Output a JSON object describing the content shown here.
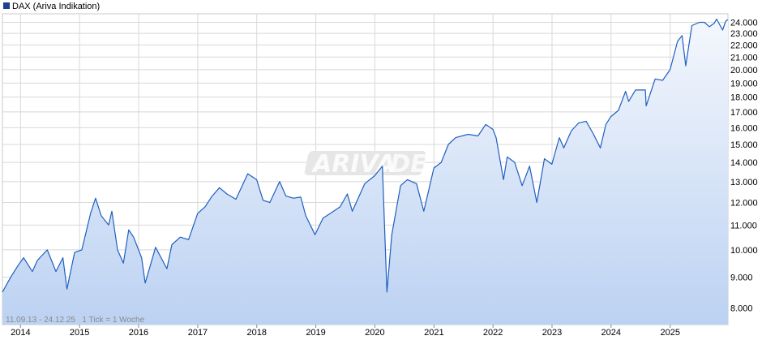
{
  "legend": {
    "label": "DAX (Ariva Indikation)",
    "swatch_color": "#1f3f8f"
  },
  "watermark": {
    "part1": "ARIVA",
    "part2": ".DE"
  },
  "info_text": "11.09.13 - 24.12.25   1 Tick = 1 Woche",
  "colors": {
    "line": "#1f5fbf",
    "fill_top": "#f4f7fd",
    "fill_bottom": "#bcd2f2",
    "grid": "#d8d8d8"
  },
  "chart_data": {
    "type": "area",
    "title": "DAX (Ariva Indikation)",
    "xlabel": "",
    "ylabel": "",
    "log_scale": true,
    "grid": true,
    "legend_position": "top-left",
    "ylim": [
      7500,
      24800
    ],
    "xlim": [
      "2013-09-11",
      "2025-12-24"
    ],
    "y_ticks": [
      8000,
      9000,
      10000,
      11000,
      12000,
      13000,
      14000,
      15000,
      16000,
      17000,
      18000,
      19000,
      20000,
      21000,
      22000,
      23000,
      24000
    ],
    "y_tick_labels": [
      "8.000",
      "9.000",
      "10.000",
      "11.000",
      "12.000",
      "13.000",
      "14.000",
      "15.000",
      "16.000",
      "17.000",
      "18.000",
      "19.000",
      "20.000",
      "21.000",
      "22.000",
      "23.000",
      "24.000"
    ],
    "x_tick_labels": [
      "2014",
      "2015",
      "2016",
      "2017",
      "2018",
      "2019",
      "2020",
      "2021",
      "2022",
      "2023",
      "2024",
      "2025"
    ],
    "x_tick_dates": [
      "2014-01-01",
      "2015-01-01",
      "2016-01-01",
      "2017-01-01",
      "2018-01-01",
      "2019-01-01",
      "2020-01-01",
      "2021-01-01",
      "2022-01-01",
      "2023-01-01",
      "2024-01-01",
      "2025-01-01"
    ],
    "series": [
      {
        "x": [
          "2013-09-11",
          "2013-11-01",
          "2013-12-15",
          "2014-01-20",
          "2014-03-15",
          "2014-04-15",
          "2014-06-15",
          "2014-08-08",
          "2014-09-20",
          "2014-10-15",
          "2014-12-01",
          "2015-01-15",
          "2015-03-10",
          "2015-04-10",
          "2015-05-15",
          "2015-06-30",
          "2015-07-20",
          "2015-08-24",
          "2015-09-29",
          "2015-11-01",
          "2015-12-01",
          "2016-01-20",
          "2016-02-11",
          "2016-04-15",
          "2016-06-24",
          "2016-07-25",
          "2016-09-15",
          "2016-11-05",
          "2016-12-31",
          "2017-02-15",
          "2017-03-31",
          "2017-05-15",
          "2017-06-30",
          "2017-08-25",
          "2017-10-15",
          "2017-11-06",
          "2017-12-31",
          "2018-02-09",
          "2018-03-23",
          "2018-05-22",
          "2018-06-30",
          "2018-08-15",
          "2018-09-30",
          "2018-10-31",
          "2018-12-27",
          "2019-02-15",
          "2019-03-31",
          "2019-05-31",
          "2019-07-15",
          "2019-08-15",
          "2019-10-31",
          "2019-12-31",
          "2020-02-17",
          "2020-03-16",
          "2020-04-15",
          "2020-06-08",
          "2020-07-20",
          "2020-09-15",
          "2020-10-30",
          "2020-12-31",
          "2021-02-15",
          "2021-03-31",
          "2021-05-15",
          "2021-07-31",
          "2021-09-30",
          "2021-11-17",
          "2021-12-31",
          "2022-01-20",
          "2022-03-07",
          "2022-03-30",
          "2022-05-15",
          "2022-06-30",
          "2022-08-15",
          "2022-09-29",
          "2022-11-15",
          "2022-12-31",
          "2023-02-15",
          "2023-03-15",
          "2023-04-30",
          "2023-06-15",
          "2023-07-31",
          "2023-09-15",
          "2023-10-27",
          "2023-11-30",
          "2023-12-31",
          "2024-02-15",
          "2024-03-31",
          "2024-04-19",
          "2024-05-31",
          "2024-07-31",
          "2024-08-05",
          "2024-09-30",
          "2024-11-15",
          "2024-12-31",
          "2025-02-15",
          "2025-03-15",
          "2025-04-07",
          "2025-05-15",
          "2025-06-30",
          "2025-07-31",
          "2025-08-31",
          "2025-09-30",
          "2025-10-15",
          "2025-11-21",
          "2025-12-10",
          "2025-12-24"
        ],
        "y": [
          8500,
          9000,
          9400,
          9700,
          9200,
          9600,
          10000,
          9200,
          9700,
          8600,
          9900,
          10000,
          11500,
          12200,
          11400,
          11000,
          11600,
          10000,
          9500,
          10800,
          10500,
          9700,
          8800,
          10100,
          9300,
          10200,
          10500,
          10400,
          11500,
          11800,
          12300,
          12700,
          12400,
          12150,
          13000,
          13400,
          13100,
          12100,
          12000,
          13000,
          12300,
          12200,
          12250,
          11400,
          10600,
          11300,
          11500,
          11800,
          12400,
          11600,
          12900,
          13300,
          13800,
          8500,
          10600,
          12800,
          13100,
          12900,
          11600,
          13700,
          14000,
          15000,
          15400,
          15600,
          15500,
          16200,
          15900,
          15400,
          13100,
          14300,
          14000,
          12800,
          13800,
          12000,
          14200,
          13900,
          15400,
          14800,
          15800,
          16300,
          16400,
          15600,
          14800,
          16200,
          16700,
          17100,
          18400,
          17700,
          18500,
          18500,
          17400,
          19300,
          19200,
          20000,
          22300,
          22800,
          20300,
          23700,
          24000,
          24000,
          23600,
          23900,
          24300,
          23300,
          24100,
          24250
        ]
      }
    ]
  }
}
